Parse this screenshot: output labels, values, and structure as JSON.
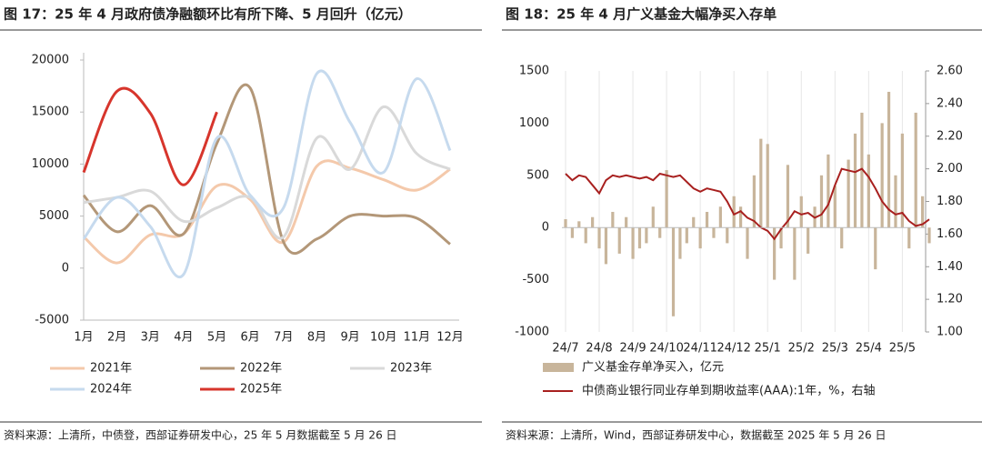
{
  "chart_data": [
    {
      "type": "line",
      "title": "图 17：25 年 4 月政府债净融额环比有所下降、5 月回升（亿元）",
      "categories": [
        "1月",
        "2月",
        "3月",
        "4月",
        "5月",
        "6月",
        "7月",
        "8月",
        "9月",
        "10月",
        "11月",
        "12月"
      ],
      "ylim": [
        -5000,
        20000
      ],
      "yticks": [
        -5000,
        0,
        5000,
        10000,
        15000,
        20000
      ],
      "series": [
        {
          "name": "2021年",
          "color": "#f4c9ab",
          "values": [
            3000,
            500,
            3200,
            3300,
            7900,
            6600,
            2500,
            9800,
            9600,
            8500,
            7500,
            9500
          ]
        },
        {
          "name": "2022年",
          "color": "#b39778",
          "values": [
            7000,
            3500,
            6000,
            3300,
            12000,
            17300,
            2500,
            2800,
            5000,
            5000,
            4800,
            2300
          ]
        },
        {
          "name": "2023年",
          "color": "#d9d9d9",
          "values": [
            6300,
            6800,
            7400,
            4500,
            5800,
            6800,
            3000,
            12500,
            9500,
            15500,
            11000,
            9500
          ]
        },
        {
          "name": "2024年",
          "color": "#c6daee",
          "values": [
            2800,
            6800,
            4000,
            -600,
            12500,
            7000,
            5800,
            18700,
            14000,
            9200,
            18200,
            11300
          ]
        },
        {
          "name": "2025年",
          "color": "#d7352c",
          "values": [
            9200,
            17000,
            14900,
            8000,
            15000,
            null,
            null,
            null,
            null,
            null,
            null,
            null
          ]
        }
      ],
      "source": "资料来源：上清所，中债登，西部证券研发中心，25 年 5 月数据截至 5 月 26 日"
    },
    {
      "type": "bar_line",
      "title": "图 18：25 年 4 月广义基金大幅净买入存单",
      "categories": [
        "24/7",
        null,
        null,
        null,
        null,
        "24/8",
        null,
        null,
        null,
        null,
        "24/9",
        null,
        null,
        null,
        null,
        "24/10",
        null,
        null,
        null,
        null,
        "24/11",
        null,
        null,
        null,
        null,
        "24/12",
        null,
        null,
        null,
        null,
        "25/1",
        null,
        null,
        null,
        null,
        "25/2",
        null,
        null,
        null,
        null,
        "25/3",
        null,
        null,
        null,
        null,
        "25/4",
        null,
        null,
        null,
        null,
        "25/5",
        null,
        null,
        null,
        null
      ],
      "ylim": [
        -1000,
        1500
      ],
      "yticks": [
        -1000,
        -500,
        0,
        500,
        1000,
        1500
      ],
      "y2lim": [
        1,
        2.6
      ],
      "y2ticks": [
        {
          "value": 1,
          "label": "1.00"
        },
        {
          "value": 1.2,
          "label": "1.20"
        },
        {
          "value": 1.4,
          "label": "1.40"
        },
        {
          "value": 1.6,
          "label": "1.60"
        },
        {
          "value": 1.8,
          "label": "1.80"
        },
        {
          "value": 2,
          "label": "2.00"
        },
        {
          "value": 2.2,
          "label": "2.20"
        },
        {
          "value": 2.4,
          "label": "2.40"
        },
        {
          "value": 2.6,
          "label": "2.60"
        }
      ],
      "series": [
        {
          "name": "广义基金存单净买入，亿元",
          "color": "#c8b59b",
          "values": [
            80,
            -100,
            60,
            -150,
            100,
            -200,
            -350,
            150,
            -250,
            100,
            -300,
            -200,
            -150,
            200,
            -100,
            550,
            -850,
            -300,
            -150,
            100,
            -200,
            150,
            -100,
            200,
            -150,
            300,
            200,
            -300,
            500,
            850,
            800,
            -500,
            -200,
            600,
            -500,
            300,
            -250,
            200,
            500,
            700,
            400,
            -200,
            650,
            900,
            1100,
            700,
            -400,
            1000,
            1300,
            500,
            900,
            -200,
            1100,
            300,
            -150
          ]
        },
        {
          "name": "中债商业银行同业存单到期收益率(AAA):1年，%，右轴",
          "color": "#a8201f",
          "axis": "y2",
          "values": [
            1.97,
            1.93,
            1.96,
            1.95,
            1.9,
            1.85,
            1.93,
            1.96,
            1.95,
            1.96,
            1.95,
            1.94,
            1.95,
            1.93,
            1.97,
            1.96,
            1.95,
            1.96,
            1.92,
            1.88,
            1.86,
            1.88,
            1.87,
            1.86,
            1.8,
            1.72,
            1.74,
            1.7,
            1.68,
            1.64,
            1.62,
            1.57,
            1.63,
            1.68,
            1.74,
            1.72,
            1.73,
            1.7,
            1.72,
            1.78,
            1.9,
            2,
            1.99,
            1.98,
            2,
            1.95,
            1.88,
            1.8,
            1.75,
            1.72,
            1.73,
            1.68,
            1.65,
            1.66,
            1.69
          ]
        }
      ],
      "source": "资料来源：上清所，Wind，西部证券研发中心，数据截至 2025 年 5 月 26 日"
    }
  ]
}
